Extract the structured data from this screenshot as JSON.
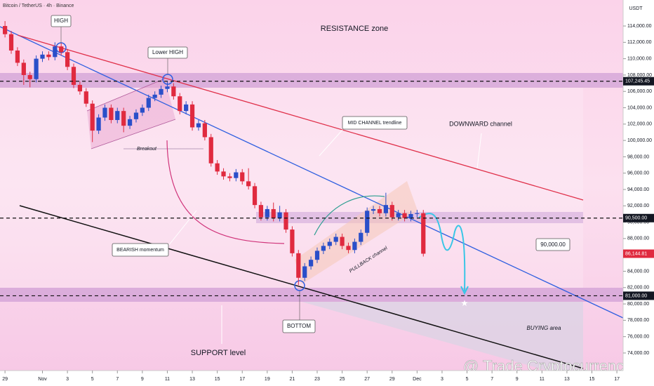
{
  "chart_data": {
    "type": "candlestick",
    "title": "Bitcoin / TetherUS · 4h · Binance",
    "currency": "USDT",
    "up_color": "#2a4fc9",
    "down_color": "#e02a3f",
    "xlim": [
      -0.4,
      49.5
    ],
    "ylim": [
      71850,
      117180
    ],
    "xticks": [
      {
        "value": 0,
        "label": "29"
      },
      {
        "value": 3,
        "label": "Nov"
      },
      {
        "value": 5,
        "label": "3"
      },
      {
        "value": 7,
        "label": "5"
      },
      {
        "value": 9,
        "label": "7"
      },
      {
        "value": 11,
        "label": "9"
      },
      {
        "value": 13,
        "label": "11"
      },
      {
        "value": 15,
        "label": "13"
      },
      {
        "value": 17,
        "label": "15"
      },
      {
        "value": 19,
        "label": "17"
      },
      {
        "value": 21,
        "label": "19"
      },
      {
        "value": 23,
        "label": "21"
      },
      {
        "value": 25,
        "label": "23"
      },
      {
        "value": 27,
        "label": "25"
      },
      {
        "value": 29,
        "label": "27"
      },
      {
        "value": 31,
        "label": "29"
      },
      {
        "value": 33,
        "label": "Dec"
      },
      {
        "value": 35,
        "label": "3"
      },
      {
        "value": 37,
        "label": "5"
      },
      {
        "value": 39,
        "label": "7"
      },
      {
        "value": 41,
        "label": "9"
      },
      {
        "value": 43,
        "label": "11"
      },
      {
        "value": 45,
        "label": "13"
      },
      {
        "value": 47,
        "label": "15"
      },
      {
        "value": 49,
        "label": "17"
      }
    ],
    "yticks": [
      {
        "value": 114000,
        "label": "114,000.00"
      },
      {
        "value": 112000,
        "label": "112,000.00"
      },
      {
        "value": 110000,
        "label": "110,000.00"
      },
      {
        "value": 108000,
        "label": "108,000.00"
      },
      {
        "value": 106000,
        "label": "106,000.00"
      },
      {
        "value": 104000,
        "label": "104,000.00"
      },
      {
        "value": 102000,
        "label": "102,000.00"
      },
      {
        "value": 100000,
        "label": "100,000.00"
      },
      {
        "value": 98000,
        "label": "98,000.00"
      },
      {
        "value": 96000,
        "label": "96,000.00"
      },
      {
        "value": 94000,
        "label": "94,000.00"
      },
      {
        "value": 92000,
        "label": "92,000.00"
      },
      {
        "value": 90000,
        "label": "90,000.00"
      },
      {
        "value": 88000,
        "label": "88,000.00"
      },
      {
        "value": 86000,
        "label": "86,000.00"
      },
      {
        "value": 84000,
        "label": "84,000.00"
      },
      {
        "value": 82000,
        "label": "82,000.00"
      },
      {
        "value": 80000,
        "label": "80,000.00"
      },
      {
        "value": 78000,
        "label": "78,000.00"
      },
      {
        "value": 76000,
        "label": "76,000.00"
      },
      {
        "value": 74000,
        "label": "74,000.00"
      }
    ],
    "x": [
      0,
      0.5,
      1,
      1.5,
      2,
      2.5,
      3,
      3.5,
      4,
      4.5,
      5,
      5.5,
      6,
      6.5,
      7,
      7.5,
      8,
      8.5,
      9,
      9.5,
      10,
      10.5,
      11,
      11.5,
      12,
      12.5,
      13,
      13.5,
      14,
      14.5,
      15,
      15.5,
      16,
      16.5,
      17,
      17.5,
      18,
      18.5,
      19,
      19.5,
      20,
      20.5,
      21,
      21.5,
      22,
      22.5,
      23,
      23.5,
      24,
      24.5,
      25,
      25.5,
      26,
      26.5,
      27,
      27.5,
      28,
      28.5,
      29,
      29.5,
      30,
      30.5,
      31,
      31.5,
      32,
      32.5,
      33,
      33.5
    ],
    "open": [
      114000,
      113000,
      111000,
      109500,
      108000,
      107500,
      110000,
      110500,
      110200,
      111500,
      110800,
      109000,
      106800,
      106000,
      104500,
      101200,
      102800,
      104000,
      102500,
      103600,
      101800,
      102600,
      103400,
      104000,
      105200,
      105600,
      106300,
      106600,
      105400,
      103600,
      104400,
      101600,
      102100,
      100400,
      97200,
      96200,
      95600,
      95400,
      96100,
      95000,
      94400,
      92100,
      90600,
      91600,
      90500,
      91200,
      89100,
      86200,
      83200,
      84600,
      85400,
      86500,
      87100,
      87600,
      88200,
      87100,
      86600,
      87600,
      88700,
      91400,
      91600,
      91100,
      92100,
      90600,
      91100,
      90500,
      91000,
      91100
    ],
    "high": [
      114600,
      113400,
      111400,
      109900,
      108400,
      110400,
      110900,
      110900,
      112000,
      111900,
      111200,
      109400,
      107200,
      106400,
      104900,
      103200,
      104400,
      104400,
      104000,
      104000,
      103000,
      103800,
      104400,
      105600,
      106000,
      106700,
      107200,
      107000,
      105800,
      104800,
      104800,
      102500,
      102500,
      100800,
      97600,
      96600,
      96000,
      96500,
      96500,
      96600,
      94800,
      92500,
      92000,
      92400,
      92000,
      91600,
      89500,
      86600,
      85000,
      85800,
      86900,
      87500,
      88000,
      88600,
      88600,
      87500,
      88000,
      89100,
      91800,
      92000,
      92000,
      93600,
      92500,
      91500,
      91500,
      91400,
      91500,
      91500
    ],
    "low": [
      112600,
      110600,
      109100,
      106800,
      106500,
      107100,
      109600,
      109800,
      109800,
      110400,
      108600,
      106400,
      105600,
      104100,
      99800,
      100800,
      102400,
      102100,
      102100,
      101000,
      101400,
      102200,
      103000,
      103600,
      104800,
      105200,
      105900,
      105000,
      103200,
      103200,
      101200,
      101200,
      100000,
      96800,
      95800,
      95200,
      95000,
      95000,
      94600,
      94000,
      91700,
      90200,
      90200,
      90100,
      90100,
      88700,
      85800,
      82300,
      82800,
      84200,
      85000,
      86100,
      86700,
      87200,
      86700,
      86200,
      86200,
      87200,
      88300,
      91000,
      90700,
      90700,
      90200,
      90200,
      90100,
      90100,
      90600,
      85800
    ],
    "close": [
      113000,
      111000,
      109500,
      108000,
      107500,
      110000,
      110500,
      110200,
      111500,
      110800,
      109000,
      106800,
      106000,
      104500,
      101200,
      102800,
      104000,
      102500,
      103600,
      101800,
      102600,
      103400,
      104000,
      105200,
      105600,
      106300,
      106600,
      105400,
      103600,
      104400,
      101600,
      102100,
      100400,
      97200,
      96200,
      95600,
      95400,
      96100,
      95000,
      94400,
      92100,
      90600,
      91600,
      90500,
      91200,
      89100,
      86200,
      83200,
      84600,
      85400,
      86500,
      87100,
      87600,
      88200,
      87100,
      86600,
      87600,
      88700,
      91400,
      91600,
      91100,
      92100,
      90600,
      91100,
      90500,
      91000,
      91100,
      86144.81
    ],
    "levels": [
      {
        "value": 107245.45,
        "label": "107,245.45"
      },
      {
        "value": 90500,
        "label": "90,500.00"
      },
      {
        "value": 81000,
        "label": "81,000.00"
      }
    ],
    "last_price": {
      "value": 86144.81,
      "label": "86,144.81"
    },
    "annotations": {
      "high": "HIGH",
      "lower_high": "Lower HIGH",
      "resistance": "RESISTANCE zone",
      "mid_channel": "MID CHANNEL trendline",
      "downward": "DOWNWARD channel",
      "breakout": "Breakout",
      "bearish": "BEARISH momentum",
      "pullback": "PULLBACK channel",
      "bottom": "BOTTOM",
      "support": "SUPPORT level",
      "buying": "BUYING area",
      "target": "90,000.00"
    },
    "watermark": "@ Trade Cryptocurrency"
  }
}
